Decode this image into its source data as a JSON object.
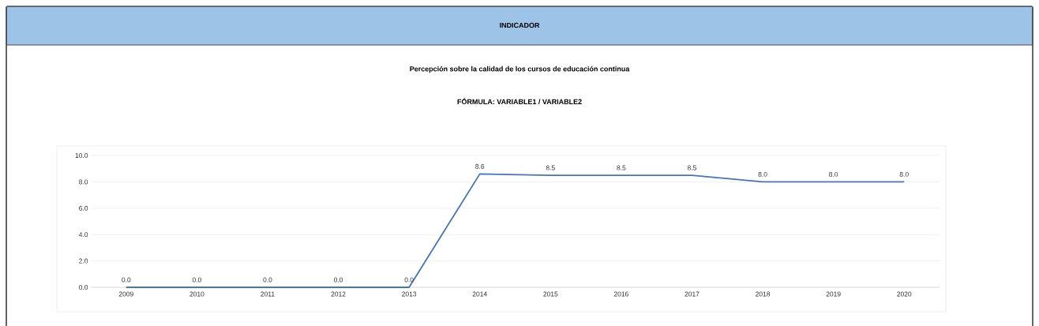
{
  "chart_data": {
    "type": "line",
    "title": "INDICADOR",
    "subtitle": "Percepción sobre la calidad de los cursos de educación continua",
    "annotations": [
      "FÓRMULA: VARIABLE1 / VARIABLE2"
    ],
    "categories": [
      "2009",
      "2010",
      "2011",
      "2012",
      "2013",
      "2014",
      "2015",
      "2016",
      "2017",
      "2018",
      "2019",
      "2020"
    ],
    "series": [
      {
        "color": "#4472c4",
        "values": [
          0,
          0,
          0,
          0,
          0,
          8.6,
          8.5,
          8.5,
          8.5,
          8.0,
          8.0,
          8.0
        ],
        "value_labels": [
          "0.0",
          "0.0",
          "0.0",
          "0.0",
          "0.0",
          "8.6",
          "8.5",
          "8.5",
          "8.5",
          "8.0",
          "8.0",
          "8.0"
        ]
      }
    ],
    "ylim": [
      0,
      10
    ],
    "yticks": [
      {
        "value": 0,
        "label": "0.0"
      },
      {
        "value": 2,
        "label": "2.0"
      },
      {
        "value": 4,
        "label": "4.0"
      },
      {
        "value": 6,
        "label": "6.0"
      },
      {
        "value": 8,
        "label": "8.0"
      },
      {
        "value": 10,
        "label": "10.0"
      }
    ],
    "grid": "y",
    "marker": "none",
    "line_style": "solid"
  }
}
